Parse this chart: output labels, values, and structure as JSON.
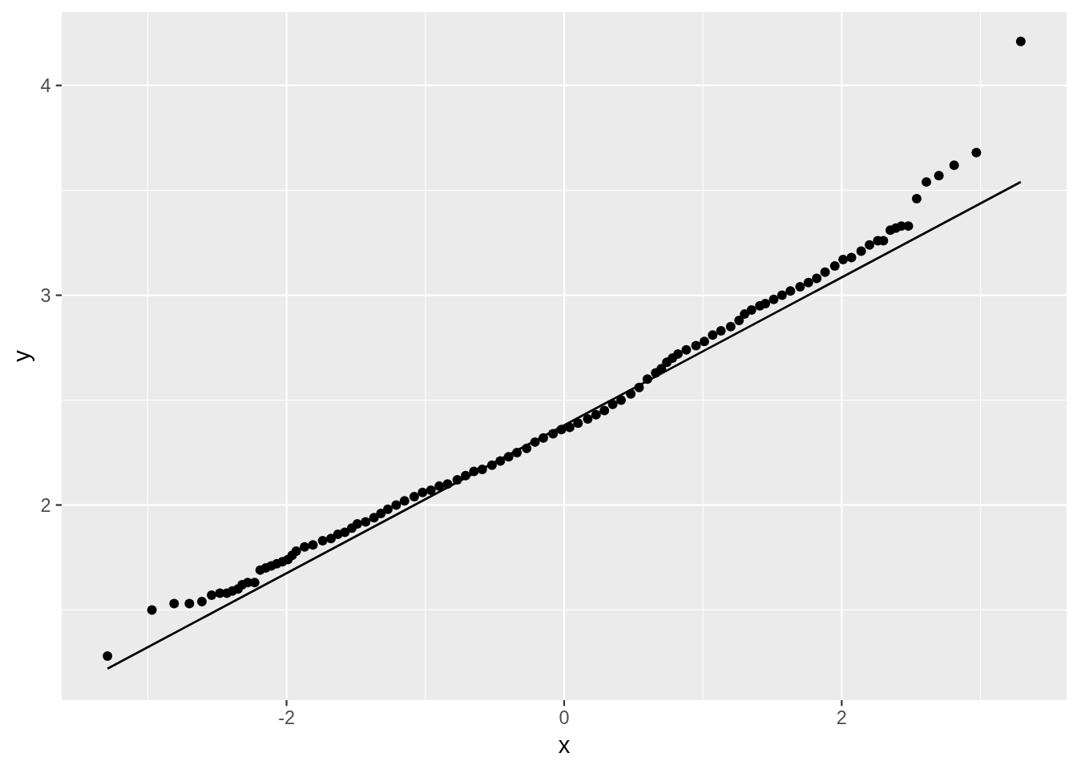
{
  "chart_data": {
    "type": "scatter",
    "xlabel": "x",
    "ylabel": "y",
    "xlim": [
      -3.62,
      3.62
    ],
    "ylim": [
      1.07,
      4.35
    ],
    "xticks": [
      {
        "value": -3,
        "label": null
      },
      -2,
      {
        "value": -1,
        "label": null
      },
      0,
      {
        "value": 1,
        "label": null
      },
      2,
      {
        "value": 3,
        "label": null
      }
    ],
    "yticks": [
      {
        "value": 1.5,
        "label": null
      },
      2,
      {
        "value": 2.5,
        "label": null
      },
      3,
      {
        "value": 3.5,
        "label": null
      },
      4
    ],
    "grid": true,
    "series": [
      {
        "color": "#000000",
        "marker": "circle",
        "x": [
          -3.29,
          -2.97,
          -2.81,
          -2.7,
          -2.61,
          -2.54,
          -2.48,
          -2.43,
          -2.39,
          -2.35,
          -2.32,
          -2.28,
          -2.23,
          -2.19,
          -2.15,
          -2.11,
          -2.07,
          -2.03,
          -1.99,
          -1.96,
          -1.93,
          -1.87,
          -1.81,
          -1.74,
          -1.68,
          -1.63,
          -1.58,
          -1.53,
          -1.49,
          -1.43,
          -1.37,
          -1.32,
          -1.27,
          -1.21,
          -1.15,
          -1.08,
          -1.02,
          -0.96,
          -0.9,
          -0.84,
          -0.77,
          -0.71,
          -0.65,
          -0.59,
          -0.52,
          -0.46,
          -0.4,
          -0.34,
          -0.27,
          -0.21,
          -0.15,
          -0.08,
          -0.02,
          0.04,
          0.1,
          0.17,
          0.23,
          0.29,
          0.35,
          0.41,
          0.48,
          0.54,
          0.6,
          0.66,
          0.7,
          0.74,
          0.78,
          0.82,
          0.88,
          0.95,
          1.01,
          1.07,
          1.13,
          1.2,
          1.26,
          1.3,
          1.35,
          1.41,
          1.45,
          1.51,
          1.57,
          1.63,
          1.7,
          1.76,
          1.82,
          1.88,
          1.95,
          2.01,
          2.07,
          2.14,
          2.2,
          2.26,
          2.3,
          2.35,
          2.39,
          2.43,
          2.48,
          2.54,
          2.61,
          2.7,
          2.81,
          2.97,
          3.29
        ],
        "values": [
          1.28,
          1.5,
          1.53,
          1.53,
          1.54,
          1.57,
          1.58,
          1.58,
          1.59,
          1.6,
          1.62,
          1.63,
          1.63,
          1.69,
          1.7,
          1.71,
          1.72,
          1.73,
          1.74,
          1.76,
          1.78,
          1.8,
          1.81,
          1.83,
          1.84,
          1.86,
          1.87,
          1.89,
          1.91,
          1.92,
          1.94,
          1.96,
          1.98,
          2.0,
          2.02,
          2.04,
          2.06,
          2.07,
          2.09,
          2.1,
          2.12,
          2.14,
          2.16,
          2.17,
          2.19,
          2.21,
          2.23,
          2.25,
          2.27,
          2.3,
          2.32,
          2.34,
          2.36,
          2.37,
          2.39,
          2.41,
          2.43,
          2.45,
          2.48,
          2.5,
          2.53,
          2.56,
          2.6,
          2.63,
          2.65,
          2.68,
          2.7,
          2.72,
          2.74,
          2.76,
          2.78,
          2.81,
          2.83,
          2.85,
          2.88,
          2.91,
          2.93,
          2.95,
          2.96,
          2.98,
          3.0,
          3.02,
          3.04,
          3.06,
          3.08,
          3.11,
          3.14,
          3.17,
          3.18,
          3.21,
          3.24,
          3.26,
          3.26,
          3.31,
          3.32,
          3.33,
          3.33,
          3.46,
          3.54,
          3.57,
          3.62,
          3.68,
          4.21
        ]
      },
      {
        "type": "line",
        "color": "#000000",
        "x": [
          -3.29,
          3.29
        ],
        "values": [
          1.22,
          3.54
        ]
      }
    ]
  }
}
